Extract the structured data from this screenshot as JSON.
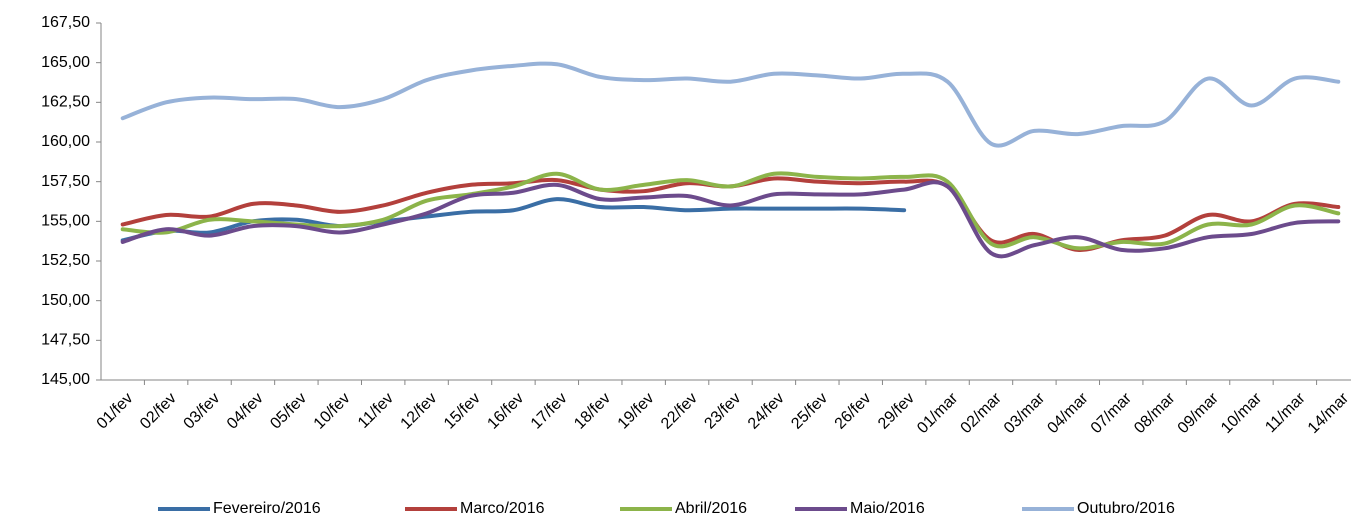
{
  "chart_data": {
    "type": "line",
    "categories": [
      "01/fev",
      "02/fev",
      "03/fev",
      "04/fev",
      "05/fev",
      "10/fev",
      "11/fev",
      "12/fev",
      "15/fev",
      "16/fev",
      "17/fev",
      "18/fev",
      "19/fev",
      "22/fev",
      "23/fev",
      "24/fev",
      "25/fev",
      "26/fev",
      "29/fev",
      "01/mar",
      "02/mar",
      "03/mar",
      "04/mar",
      "07/mar",
      "08/mar",
      "09/mar",
      "10/mar",
      "11/mar",
      "14/mar"
    ],
    "series": [
      {
        "name": "Fevereiro/2016",
        "color": "#3a6ea5",
        "values": [
          153.8,
          154.4,
          154.3,
          155.0,
          155.1,
          154.7,
          155.0,
          155.3,
          155.6,
          155.7,
          156.4,
          155.9,
          155.9,
          155.7,
          155.8,
          155.8,
          155.8,
          155.8,
          155.7,
          null,
          null,
          null,
          null,
          null,
          null,
          null,
          null,
          null,
          null
        ]
      },
      {
        "name": "Marco/2016",
        "color": "#b3403c",
        "values": [
          154.8,
          155.4,
          155.3,
          156.1,
          156.0,
          155.6,
          156.0,
          156.8,
          157.3,
          157.4,
          157.6,
          157.0,
          156.9,
          157.4,
          157.2,
          157.7,
          157.5,
          157.4,
          157.5,
          157.2,
          153.8,
          154.2,
          153.2,
          153.8,
          154.1,
          155.4,
          155.0,
          156.1,
          155.9
        ]
      },
      {
        "name": "Abril/2016",
        "color": "#8cb44a",
        "values": [
          154.5,
          154.3,
          155.1,
          155.0,
          154.8,
          154.7,
          155.1,
          156.3,
          156.7,
          157.2,
          158.0,
          157.0,
          157.3,
          157.6,
          157.2,
          158.0,
          157.8,
          157.7,
          157.8,
          157.5,
          153.6,
          154.0,
          153.3,
          153.7,
          153.6,
          154.8,
          154.8,
          156.0,
          155.5
        ]
      },
      {
        "name": "Maio/2016",
        "color": "#6c4b8c",
        "values": [
          153.7,
          154.5,
          154.1,
          154.7,
          154.7,
          154.3,
          154.8,
          155.5,
          156.6,
          156.8,
          157.3,
          156.4,
          156.5,
          156.6,
          156.0,
          156.7,
          156.7,
          156.7,
          157.0,
          157.2,
          153.0,
          153.5,
          154.0,
          153.2,
          153.3,
          154.0,
          154.2,
          154.9,
          155.0
        ]
      },
      {
        "name": "Outubro/2016",
        "color": "#97b2d8",
        "values": [
          161.5,
          162.5,
          162.8,
          162.7,
          162.7,
          162.2,
          162.7,
          163.9,
          164.5,
          164.8,
          164.9,
          164.1,
          163.9,
          164.0,
          163.8,
          164.3,
          164.2,
          164.0,
          164.3,
          163.8,
          159.9,
          160.7,
          160.5,
          161.0,
          161.3,
          164.0,
          162.3,
          164.0,
          163.8
        ]
      }
    ],
    "ylim": [
      145,
      167.5
    ],
    "yticks": [
      {
        "value": 145,
        "label": "145,00"
      },
      {
        "value": 147.5,
        "label": "147,50"
      },
      {
        "value": 150,
        "label": "150,00"
      },
      {
        "value": 152.5,
        "label": "152,50"
      },
      {
        "value": 155,
        "label": "155,00"
      },
      {
        "value": 157.5,
        "label": "157,50"
      },
      {
        "value": 160,
        "label": "160,00"
      },
      {
        "value": 162.5,
        "label": "162,50"
      },
      {
        "value": 165,
        "label": "165,00"
      },
      {
        "value": 167.5,
        "label": "167,50"
      }
    ],
    "legend": "bottom"
  }
}
